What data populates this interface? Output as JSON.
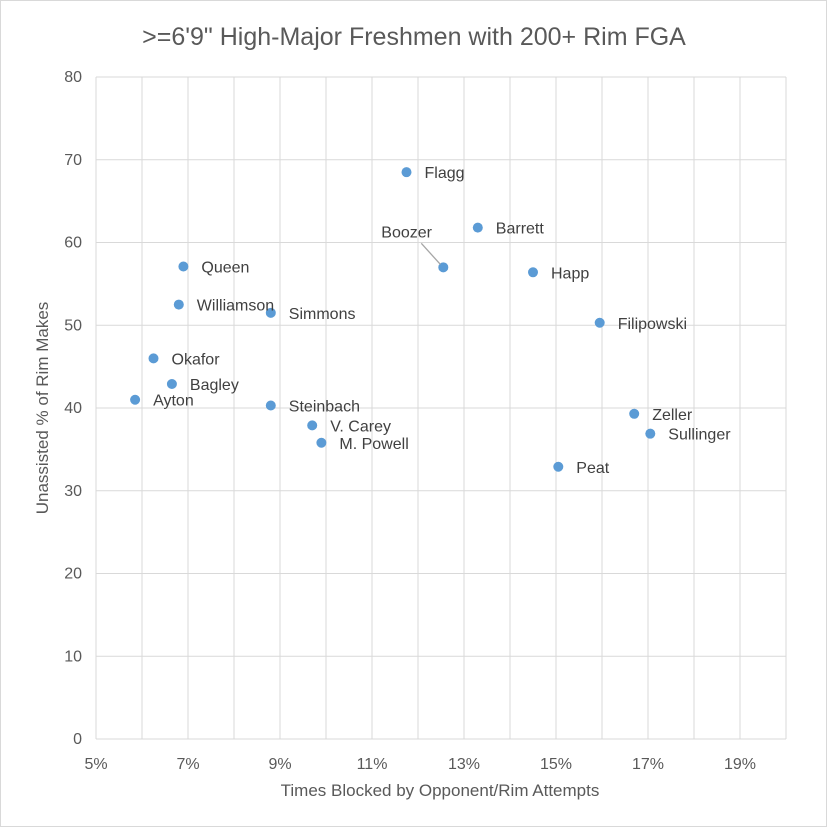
{
  "chart_data": {
    "type": "scatter",
    "title": ">=6'9\" High-Major Freshmen with 200+ Rim FGA",
    "xlabel": "Times Blocked by Opponent/Rim Attempts",
    "ylabel": "Unassisted % of Rim Makes",
    "xlim": [
      5,
      20
    ],
    "ylim": [
      0,
      80
    ],
    "x_ticks": [
      "5%",
      "7%",
      "9%",
      "11%",
      "13%",
      "15%",
      "17%",
      "19%"
    ],
    "y_ticks": [
      "0",
      "10",
      "20",
      "30",
      "40",
      "50",
      "60",
      "70",
      "80"
    ],
    "grid": true,
    "legend": "none",
    "color": "#5b9bd5",
    "points": [
      {
        "label": "Flagg",
        "x": 11.75,
        "y": 68.5
      },
      {
        "label": "Barrett",
        "x": 13.3,
        "y": 61.8
      },
      {
        "label": "Boozer",
        "x": 12.55,
        "y": 57.0
      },
      {
        "label": "Happ",
        "x": 14.5,
        "y": 56.4
      },
      {
        "label": "Queen",
        "x": 6.9,
        "y": 57.1
      },
      {
        "label": "Williamson",
        "x": 6.8,
        "y": 52.5
      },
      {
        "label": "Simmons",
        "x": 8.8,
        "y": 51.5
      },
      {
        "label": "Filipowski",
        "x": 15.95,
        "y": 50.3
      },
      {
        "label": "Okafor",
        "x": 6.25,
        "y": 46.0
      },
      {
        "label": "Bagley",
        "x": 6.65,
        "y": 42.9
      },
      {
        "label": "Ayton",
        "x": 5.85,
        "y": 41.0
      },
      {
        "label": "Steinbach",
        "x": 8.8,
        "y": 40.3
      },
      {
        "label": "V. Carey",
        "x": 9.7,
        "y": 37.9
      },
      {
        "label": "M. Powell",
        "x": 9.9,
        "y": 35.8
      },
      {
        "label": "Zeller",
        "x": 16.7,
        "y": 39.3
      },
      {
        "label": "Sullinger",
        "x": 17.05,
        "y": 36.9
      },
      {
        "label": "Peat",
        "x": 15.05,
        "y": 32.9
      }
    ]
  }
}
